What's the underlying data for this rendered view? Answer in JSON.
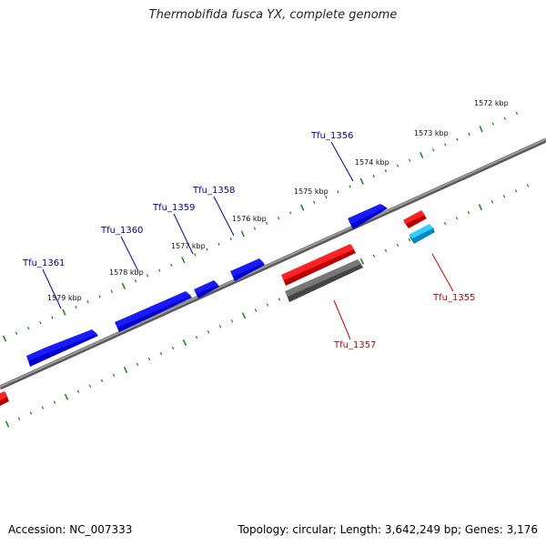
{
  "title": "Thermobifida fusca YX, complete genome",
  "footer": {
    "accession": "Accession: NC_007333",
    "summary": "Topology: circular; Length: 3,642,249 bp; Genes: 3,176"
  },
  "colors": {
    "background": "#ffffff",
    "backbone": "#8c8c8c",
    "forward_gene": "#0000ee",
    "reverse_gene": "#ee1111",
    "pseudo_gene": "#666666",
    "rna_gene": "#22bbee",
    "tick": "#228822",
    "forward_label": "#0000aa",
    "reverse_label": "#cc0000"
  },
  "scale_labels": [
    "1572 kbp",
    "1573 kbp",
    "1574 kbp",
    "1575 kbp",
    "1576 kbp",
    "1577 kbp",
    "1578 kbp",
    "1579 kbp"
  ],
  "gene_labels": [
    {
      "text": "Tfu_1356",
      "strand": "forward"
    },
    {
      "text": "Tfu_1358",
      "strand": "forward"
    },
    {
      "text": "Tfu_1359",
      "strand": "forward"
    },
    {
      "text": "Tfu_1360",
      "strand": "forward"
    },
    {
      "text": "Tfu_1361",
      "strand": "forward"
    },
    {
      "text": "Tfu_1355",
      "strand": "reverse"
    },
    {
      "text": "Tfu_1357",
      "strand": "reverse"
    }
  ]
}
